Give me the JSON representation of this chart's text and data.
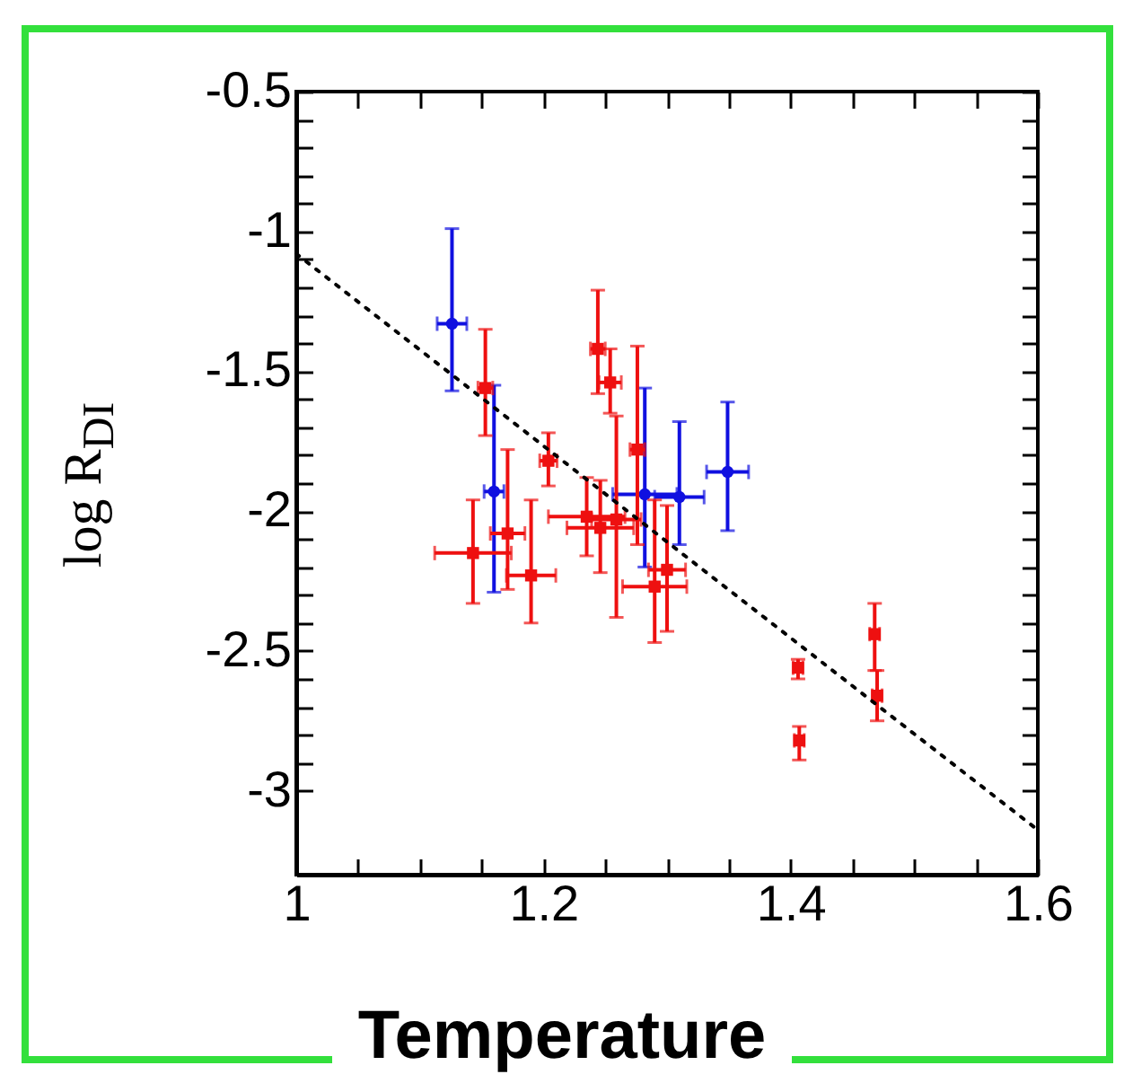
{
  "chart_data": {
    "type": "scatter",
    "xlabel": "Temperature",
    "ylabel": "log R$_{DI}$",
    "xlim": [
      1,
      1.6
    ],
    "ylim": [
      -3.3,
      -0.5
    ],
    "xticks": [
      1,
      {
        "value": 1.05,
        "label": null
      },
      {
        "value": 1.1,
        "label": null
      },
      {
        "value": 1.15,
        "label": null
      },
      1.2,
      {
        "value": 1.25,
        "label": null
      },
      {
        "value": 1.3,
        "label": null
      },
      {
        "value": 1.35,
        "label": null
      },
      1.4,
      {
        "value": 1.45,
        "label": null
      },
      {
        "value": 1.5,
        "label": null
      },
      {
        "value": 1.55,
        "label": null
      },
      1.6
    ],
    "yticks": [
      -3,
      {
        "value": -2.9,
        "label": null
      },
      {
        "value": -2.8,
        "label": null
      },
      {
        "value": -2.7,
        "label": null
      },
      {
        "value": -2.6,
        "label": null
      },
      -2.5,
      {
        "value": -2.4,
        "label": null
      },
      {
        "value": -2.3,
        "label": null
      },
      {
        "value": -2.2,
        "label": null
      },
      {
        "value": -2.1,
        "label": null
      },
      -2,
      {
        "value": -1.9,
        "label": null
      },
      {
        "value": -1.8,
        "label": null
      },
      {
        "value": -1.7,
        "label": null
      },
      {
        "value": -1.6,
        "label": null
      },
      -1.5,
      {
        "value": -1.4,
        "label": null
      },
      {
        "value": -1.3,
        "label": null
      },
      {
        "value": -1.2,
        "label": null
      },
      {
        "value": -1.1,
        "label": null
      },
      -1,
      {
        "value": -0.9,
        "label": null
      },
      {
        "value": -0.8,
        "label": null
      },
      {
        "value": -0.7,
        "label": null
      },
      {
        "value": -0.6,
        "label": null
      },
      -0.5
    ],
    "grid": false,
    "series": [
      {
        "color": "#1010e0",
        "marker": "circle",
        "x": [
          1.126,
          1.16,
          1.282,
          1.31,
          1.349
        ],
        "values": [
          -1.33,
          -1.93,
          -1.94,
          -1.95,
          -1.86
        ],
        "errors": [
          [
            -1.57,
            -0.99
          ],
          [
            -2.29,
            -1.55
          ],
          [
            -2.2,
            -1.56
          ],
          [
            -2.12,
            -1.68
          ],
          [
            -2.07,
            -1.61
          ]
        ],
        "xerrors": [
          0.012,
          0.008,
          0.026,
          0.02,
          0.017
        ]
      },
      {
        "color": "#ee1010",
        "marker": "square",
        "x": [
          1.143,
          1.153,
          1.171,
          1.19,
          1.204,
          1.244,
          1.254,
          1.235,
          1.246,
          1.259,
          1.276,
          1.29,
          1.3,
          1.406,
          1.407,
          1.468,
          1.47
        ],
        "values": [
          -2.15,
          -1.56,
          -2.08,
          -2.23,
          -1.82,
          -1.42,
          -1.54,
          -2.02,
          -2.06,
          -2.03,
          -1.78,
          -2.27,
          -2.21,
          -2.56,
          -2.82,
          -2.44,
          -2.66
        ],
        "errors": [
          [
            -2.33,
            -1.96
          ],
          [
            -1.73,
            -1.35
          ],
          [
            -2.28,
            -1.78
          ],
          [
            -2.4,
            -1.96
          ],
          [
            -1.91,
            -1.72
          ],
          [
            -1.58,
            -1.21
          ],
          [
            -1.65,
            -1.42
          ],
          [
            -2.16,
            -1.88
          ],
          [
            -2.22,
            -1.89
          ],
          [
            -2.38,
            -1.66
          ],
          [
            -2.12,
            -1.41
          ],
          [
            -2.47,
            -1.96
          ],
          [
            -2.43,
            -1.98
          ],
          [
            -2.6,
            -2.53
          ],
          [
            -2.89,
            -2.77
          ],
          [
            -2.57,
            -2.33
          ],
          [
            -2.75,
            -2.57
          ]
        ],
        "xerrors": [
          0.031,
          0.006,
          0.014,
          0.02,
          0.007,
          0.006,
          0.009,
          0.031,
          0.027,
          0.02,
          0.006,
          0.026,
          0.015,
          0.004,
          0.004,
          0.004,
          0.004
        ]
      },
      {
        "type": "line",
        "color": "#000000",
        "line_style": "dotted",
        "marker": "none",
        "x": [
          1,
          1.6
        ],
        "values": [
          -1.08,
          -3.14
        ]
      }
    ]
  }
}
